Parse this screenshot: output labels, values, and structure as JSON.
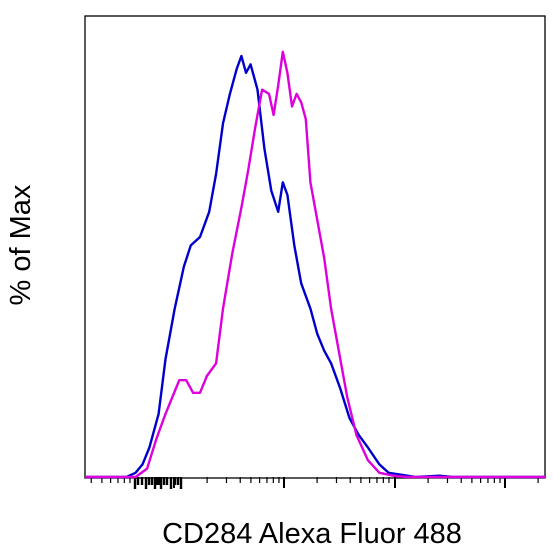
{
  "chart_data": {
    "type": "line",
    "title": "",
    "xlabel": "CD284 Alexa Fluor 488",
    "ylabel": "% of Max",
    "x_scale": "log",
    "xlim": [
      0,
      1
    ],
    "ylim": [
      0,
      100
    ],
    "grid": false,
    "legend": "none",
    "series": [
      {
        "color": "#0000cc",
        "points": [
          [
            0.0,
            0
          ],
          [
            0.09,
            0
          ],
          [
            0.11,
            1
          ],
          [
            0.125,
            3
          ],
          [
            0.14,
            7
          ],
          [
            0.16,
            15
          ],
          [
            0.175,
            28
          ],
          [
            0.195,
            40
          ],
          [
            0.215,
            50
          ],
          [
            0.23,
            55
          ],
          [
            0.25,
            57
          ],
          [
            0.27,
            63
          ],
          [
            0.285,
            72
          ],
          [
            0.3,
            84
          ],
          [
            0.315,
            91
          ],
          [
            0.33,
            97
          ],
          [
            0.34,
            100
          ],
          [
            0.35,
            96
          ],
          [
            0.36,
            98
          ],
          [
            0.375,
            92
          ],
          [
            0.39,
            78
          ],
          [
            0.405,
            68
          ],
          [
            0.42,
            63
          ],
          [
            0.43,
            70
          ],
          [
            0.44,
            67
          ],
          [
            0.455,
            55
          ],
          [
            0.47,
            46
          ],
          [
            0.49,
            40
          ],
          [
            0.505,
            34
          ],
          [
            0.52,
            30
          ],
          [
            0.535,
            27
          ],
          [
            0.555,
            21
          ],
          [
            0.575,
            14
          ],
          [
            0.595,
            10
          ],
          [
            0.615,
            7
          ],
          [
            0.64,
            3
          ],
          [
            0.66,
            1
          ],
          [
            0.69,
            0.5
          ],
          [
            0.72,
            0
          ],
          [
            0.77,
            0.3
          ],
          [
            0.8,
            0
          ],
          [
            1.0,
            0
          ]
        ]
      },
      {
        "color": "#dd00dd",
        "points": [
          [
            0.0,
            0
          ],
          [
            0.11,
            0
          ],
          [
            0.135,
            2
          ],
          [
            0.155,
            9
          ],
          [
            0.175,
            15
          ],
          [
            0.19,
            19
          ],
          [
            0.205,
            23
          ],
          [
            0.22,
            23
          ],
          [
            0.235,
            20
          ],
          [
            0.25,
            20
          ],
          [
            0.265,
            24
          ],
          [
            0.285,
            27
          ],
          [
            0.3,
            40
          ],
          [
            0.32,
            53
          ],
          [
            0.34,
            64
          ],
          [
            0.355,
            73
          ],
          [
            0.37,
            83
          ],
          [
            0.385,
            92
          ],
          [
            0.4,
            91
          ],
          [
            0.41,
            86
          ],
          [
            0.42,
            93
          ],
          [
            0.43,
            101
          ],
          [
            0.44,
            96
          ],
          [
            0.45,
            88
          ],
          [
            0.46,
            91
          ],
          [
            0.47,
            89
          ],
          [
            0.48,
            85
          ],
          [
            0.49,
            70
          ],
          [
            0.505,
            61
          ],
          [
            0.52,
            52
          ],
          [
            0.535,
            40
          ],
          [
            0.55,
            31
          ],
          [
            0.57,
            19
          ],
          [
            0.59,
            10
          ],
          [
            0.615,
            4
          ],
          [
            0.64,
            1
          ],
          [
            0.67,
            0.3
          ],
          [
            0.7,
            0
          ],
          [
            1.0,
            0
          ]
        ]
      }
    ]
  }
}
